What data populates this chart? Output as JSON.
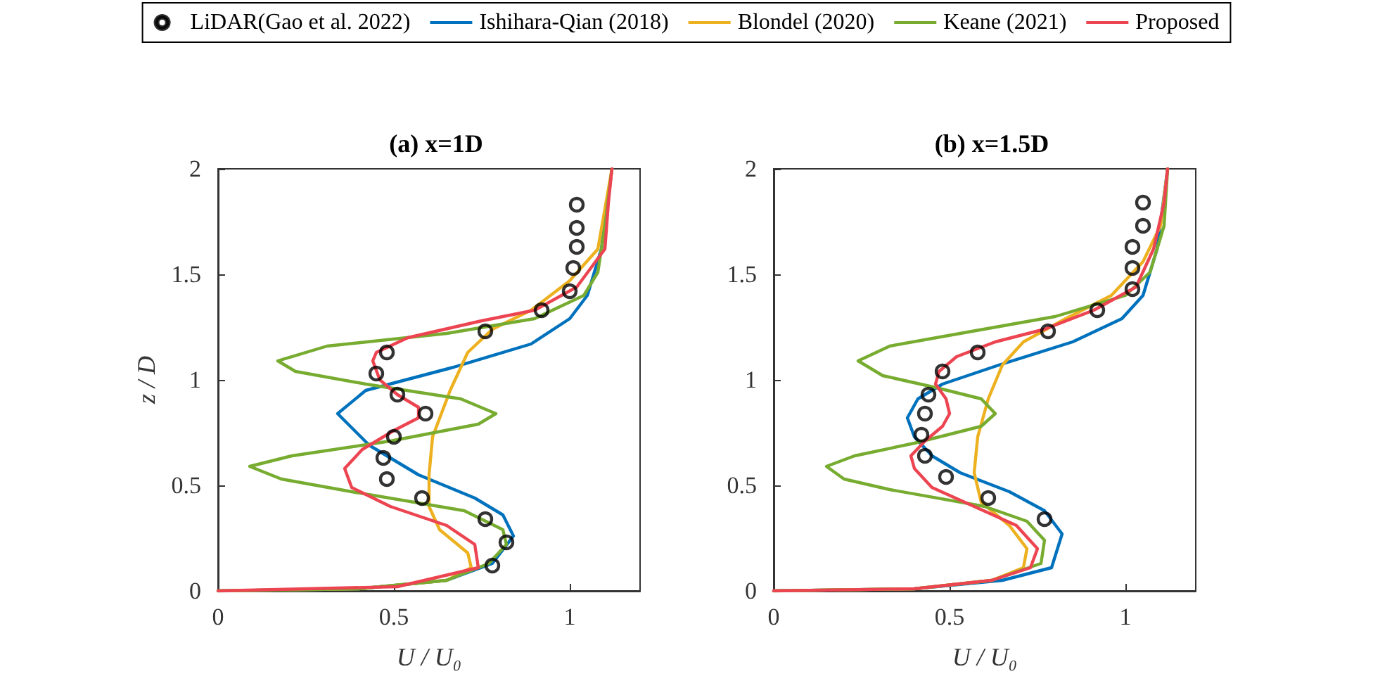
{
  "chart_data": [
    {
      "type": "line",
      "title": "(a) x=1D",
      "xlabel": "U / U₀",
      "ylabel": "z / D",
      "xlim": [
        0,
        1.2
      ],
      "xticks": [
        0,
        0.5,
        1
      ],
      "ylim": [
        0,
        2
      ],
      "yticks": [
        0,
        0.5,
        1,
        1.5,
        2
      ],
      "grid": false,
      "legend": "top",
      "series": [
        {
          "name": "LiDAR(Gao et al. 2022)",
          "type": "scatter",
          "marker": "circle",
          "color": "#000000",
          "x": [
            1.02,
            1.02,
            1.02,
            1.01,
            1.0,
            0.92,
            0.76,
            0.48,
            0.45,
            0.51,
            0.59,
            0.5,
            0.47,
            0.48,
            0.58,
            0.76,
            0.82,
            0.78
          ],
          "values": [
            1.83,
            1.72,
            1.63,
            1.53,
            1.42,
            1.33,
            1.23,
            1.13,
            1.03,
            0.93,
            0.84,
            0.73,
            0.63,
            0.53,
            0.44,
            0.34,
            0.23,
            0.12
          ]
        },
        {
          "name": "Ishihara-Qian (2018)",
          "color": "#0072bd",
          "x": [
            0,
            0.4,
            0.65,
            0.78,
            0.84,
            0.81,
            0.73,
            0.57,
            0.43,
            0.34,
            0.42,
            0.67,
            0.89,
            1.0,
            1.05,
            1.09,
            1.12
          ],
          "values": [
            0,
            0.01,
            0.05,
            0.13,
            0.26,
            0.36,
            0.44,
            0.55,
            0.69,
            0.84,
            0.95,
            1.06,
            1.17,
            1.29,
            1.4,
            1.62,
            2
          ]
        },
        {
          "name": "Blondel (2020)",
          "color": "#edb120",
          "x": [
            0,
            0.4,
            0.65,
            0.72,
            0.71,
            0.63,
            0.6,
            0.6,
            0.61,
            0.66,
            0.71,
            0.78,
            0.89,
            1.0,
            1.08,
            1.12
          ],
          "values": [
            0,
            0.01,
            0.05,
            0.11,
            0.18,
            0.29,
            0.4,
            0.55,
            0.73,
            0.95,
            1.13,
            1.24,
            1.33,
            1.47,
            1.62,
            2
          ]
        },
        {
          "name": "Keane (2021)",
          "color": "#77ac30",
          "x": [
            0,
            0.4,
            0.65,
            0.77,
            0.82,
            0.81,
            0.7,
            0.38,
            0.18,
            0.09,
            0.21,
            0.49,
            0.74,
            0.79,
            0.69,
            0.42,
            0.22,
            0.17,
            0.31,
            0.65,
            0.9,
            1.04,
            1.08,
            1.1,
            1.12
          ],
          "values": [
            0,
            0.01,
            0.05,
            0.13,
            0.22,
            0.29,
            0.38,
            0.47,
            0.53,
            0.59,
            0.64,
            0.71,
            0.79,
            0.84,
            0.91,
            0.98,
            1.04,
            1.09,
            1.16,
            1.22,
            1.29,
            1.4,
            1.51,
            1.73,
            2
          ]
        },
        {
          "name": "Proposed",
          "color": "#ec4450",
          "x": [
            0,
            0.51,
            0.74,
            0.73,
            0.65,
            0.49,
            0.38,
            0.36,
            0.41,
            0.5,
            0.57,
            0.57,
            0.51,
            0.46,
            0.44,
            0.45,
            0.54,
            0.75,
            0.9,
            1.02,
            1.1,
            1.11,
            1.12
          ],
          "values": [
            0,
            0.02,
            0.11,
            0.22,
            0.31,
            0.4,
            0.49,
            0.58,
            0.67,
            0.76,
            0.82,
            0.87,
            0.93,
            1.0,
            1.09,
            1.13,
            1.2,
            1.28,
            1.33,
            1.44,
            1.62,
            1.84,
            2
          ]
        }
      ]
    },
    {
      "type": "line",
      "title": "(b) x=1.5D",
      "xlabel": "U / U₀",
      "xlim": [
        0,
        1.2
      ],
      "xticks": [
        0,
        0.5,
        1
      ],
      "ylim": [
        0,
        2
      ],
      "yticks": [
        0,
        0.5,
        1,
        1.5,
        2
      ],
      "grid": false,
      "series": [
        {
          "type": "scatter",
          "marker": "circle",
          "color": "#000000",
          "x": [
            1.05,
            1.05,
            1.02,
            1.02,
            1.02,
            0.92,
            0.78,
            0.58,
            0.48,
            0.44,
            0.43,
            0.42,
            0.43,
            0.49,
            0.61,
            0.77
          ],
          "values": [
            1.84,
            1.73,
            1.63,
            1.53,
            1.43,
            1.33,
            1.23,
            1.13,
            1.04,
            0.93,
            0.84,
            0.74,
            0.64,
            0.54,
            0.44,
            0.34
          ]
        },
        {
          "color": "#0072bd",
          "x": [
            0,
            0.4,
            0.65,
            0.79,
            0.82,
            0.77,
            0.67,
            0.53,
            0.45,
            0.4,
            0.38,
            0.41,
            0.48,
            0.64,
            0.85,
            0.99,
            1.05,
            1.09,
            1.12
          ],
          "values": [
            0,
            0.01,
            0.05,
            0.11,
            0.27,
            0.38,
            0.47,
            0.56,
            0.64,
            0.73,
            0.82,
            0.91,
            0.98,
            1.07,
            1.18,
            1.29,
            1.4,
            1.62,
            2
          ]
        },
        {
          "color": "#edb120",
          "x": [
            0,
            0.4,
            0.62,
            0.71,
            0.72,
            0.67,
            0.59,
            0.57,
            0.58,
            0.61,
            0.65,
            0.71,
            0.83,
            0.96,
            1.05,
            1.1,
            1.12
          ],
          "values": [
            0,
            0.01,
            0.05,
            0.11,
            0.2,
            0.31,
            0.42,
            0.56,
            0.73,
            0.91,
            1.07,
            1.18,
            1.29,
            1.4,
            1.56,
            1.73,
            2
          ]
        },
        {
          "color": "#77ac30",
          "x": [
            0,
            0.4,
            0.62,
            0.76,
            0.77,
            0.72,
            0.6,
            0.33,
            0.2,
            0.15,
            0.23,
            0.4,
            0.59,
            0.63,
            0.59,
            0.47,
            0.31,
            0.24,
            0.33,
            0.53,
            0.8,
            1.0,
            1.07,
            1.11,
            1.12
          ],
          "values": [
            0,
            0.01,
            0.05,
            0.13,
            0.24,
            0.33,
            0.4,
            0.48,
            0.53,
            0.59,
            0.64,
            0.7,
            0.78,
            0.84,
            0.91,
            0.96,
            1.02,
            1.09,
            1.16,
            1.22,
            1.3,
            1.4,
            1.51,
            1.73,
            2
          ]
        },
        {
          "color": "#ec4450",
          "x": [
            0,
            0.4,
            0.62,
            0.73,
            0.75,
            0.69,
            0.57,
            0.45,
            0.4,
            0.39,
            0.43,
            0.48,
            0.5,
            0.49,
            0.46,
            0.47,
            0.52,
            0.63,
            0.77,
            0.91,
            1.03,
            1.08,
            1.11,
            1.12
          ],
          "values": [
            0,
            0.01,
            0.05,
            0.11,
            0.2,
            0.31,
            0.4,
            0.49,
            0.58,
            0.64,
            0.71,
            0.78,
            0.84,
            0.91,
            0.98,
            1.04,
            1.11,
            1.18,
            1.24,
            1.33,
            1.44,
            1.62,
            1.84,
            2
          ]
        }
      ]
    }
  ]
}
